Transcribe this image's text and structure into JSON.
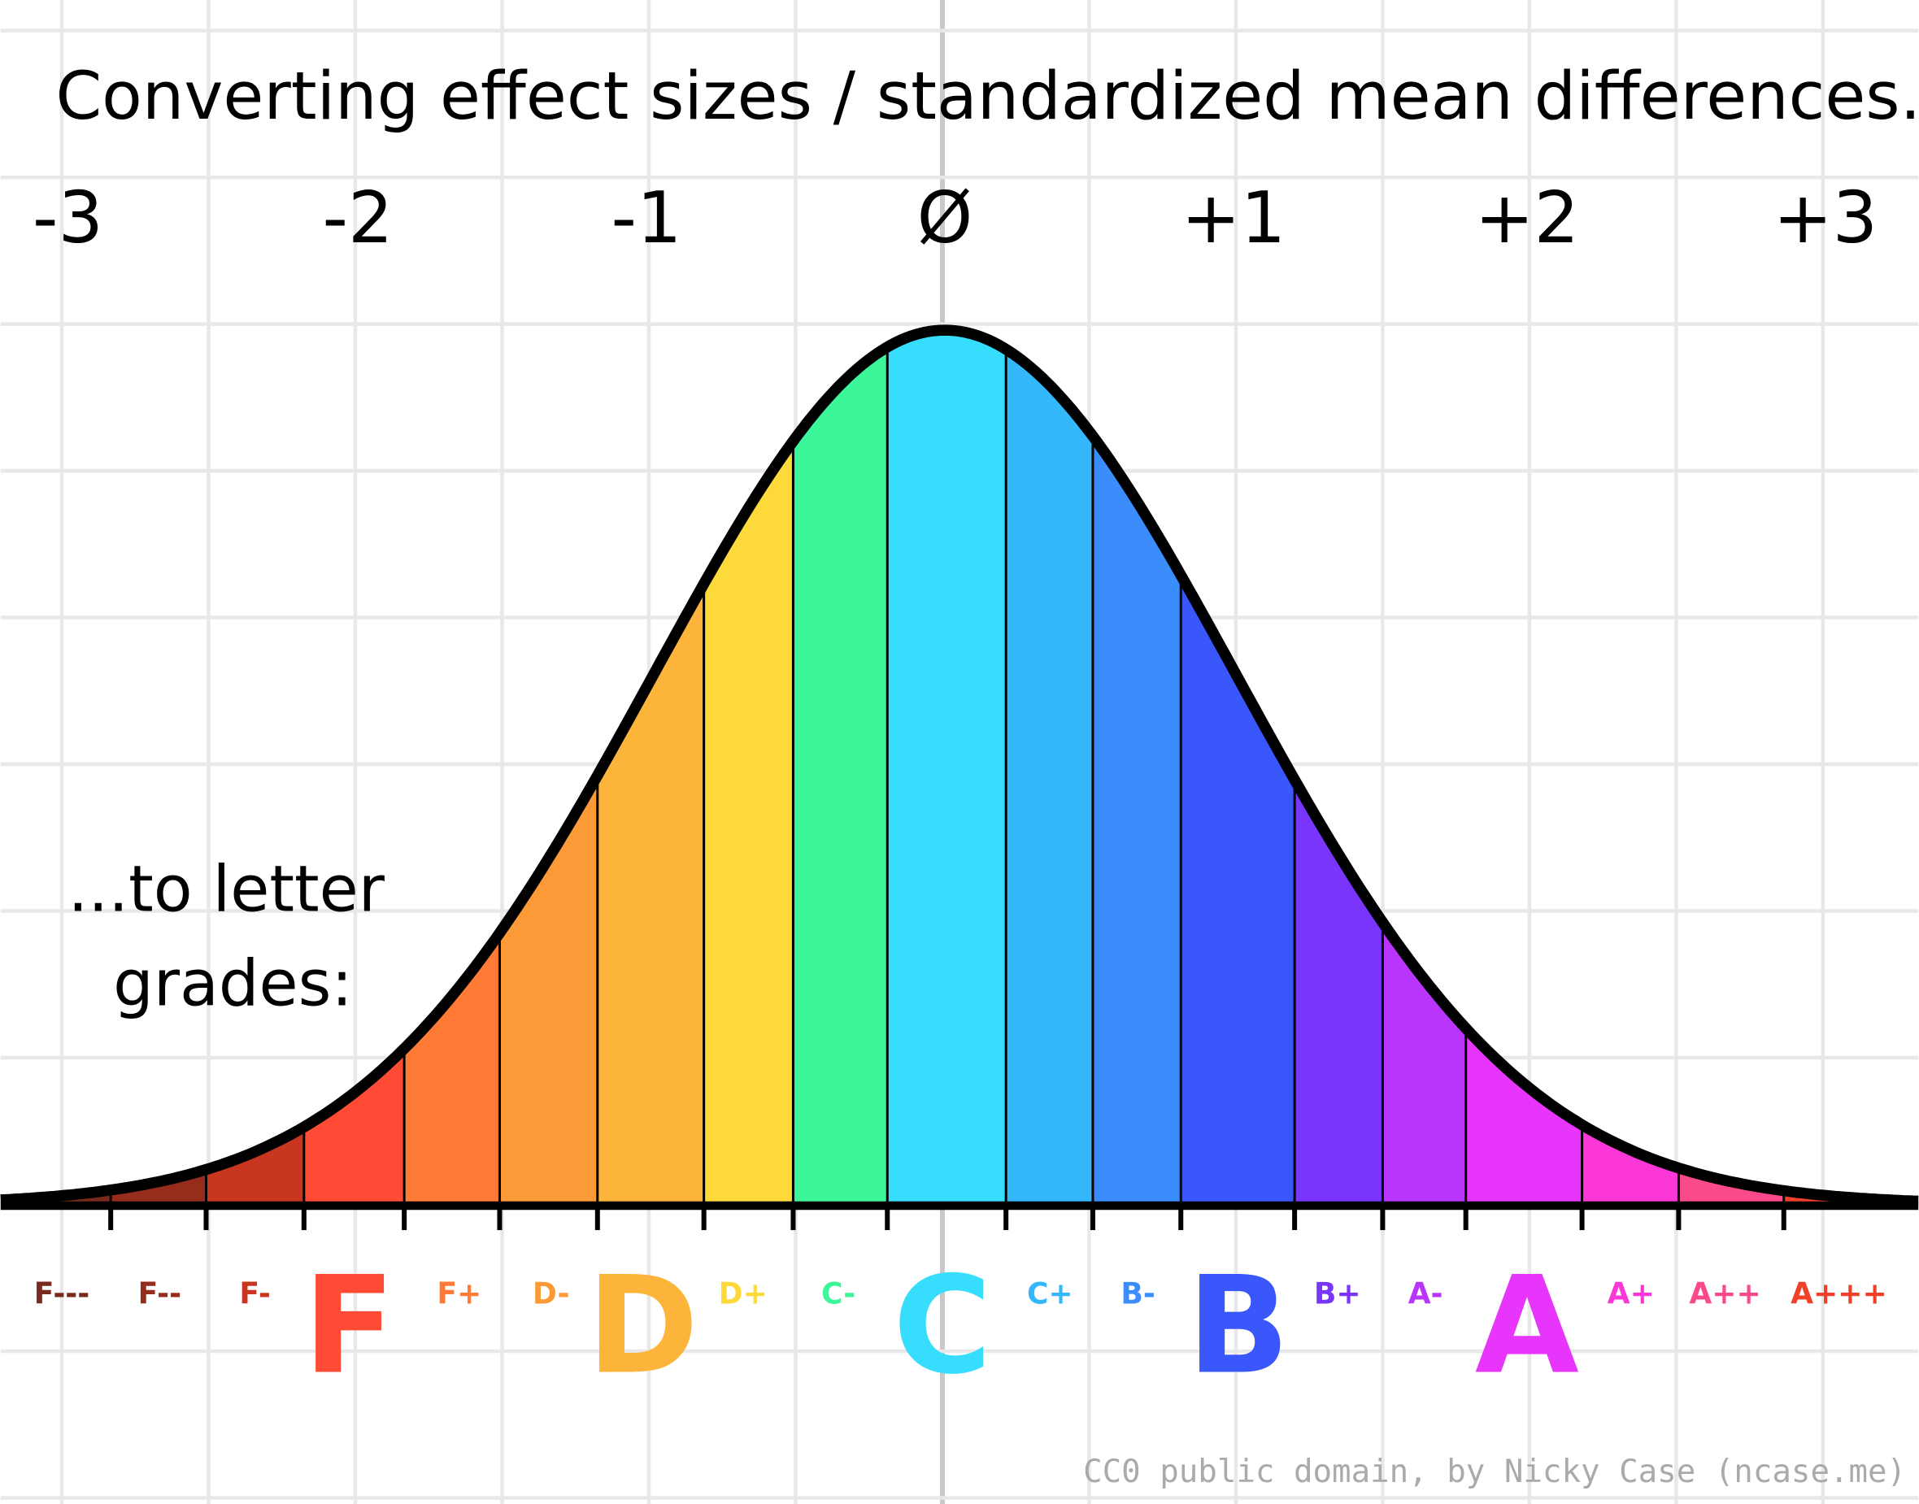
{
  "title": "Converting effect sizes / standardized mean differences...",
  "axis_labels": [
    "-3",
    "-2",
    "-1",
    "Ø",
    "+1",
    "+2",
    "+3"
  ],
  "subtitle": [
    "...to letter",
    "grades:"
  ],
  "grades": [
    {
      "label": "F---",
      "color": "#7a2a1c"
    },
    {
      "label": "F--",
      "color": "#952c1c"
    },
    {
      "label": "F-",
      "color": "#c9361f"
    },
    {
      "label": "F",
      "color": "#ff4a35"
    },
    {
      "label": "F+",
      "color": "#ff7a35"
    },
    {
      "label": "D-",
      "color": "#fb9a36"
    },
    {
      "label": "D",
      "color": "#fcb53a"
    },
    {
      "label": "D+",
      "color": "#fdd93a"
    },
    {
      "label": "C-",
      "color": "#3cf79a"
    },
    {
      "label": "C",
      "color": "#37ddfc"
    },
    {
      "label": "C+",
      "color": "#35b8fb"
    },
    {
      "label": "B-",
      "color": "#3b8dfb"
    },
    {
      "label": "B",
      "color": "#3a57fb"
    },
    {
      "label": "B+",
      "color": "#7a35fb"
    },
    {
      "label": "A-",
      "color": "#b935fb"
    },
    {
      "label": "A",
      "color": "#e835fb"
    },
    {
      "label": "A+",
      "color": "#fb37d8"
    },
    {
      "label": "A++",
      "color": "#fb4a8c"
    },
    {
      "label": "A+++",
      "color": "#f0402a"
    }
  ],
  "credit": "CC0 public domain, by Nicky Case (ncase.me)"
}
